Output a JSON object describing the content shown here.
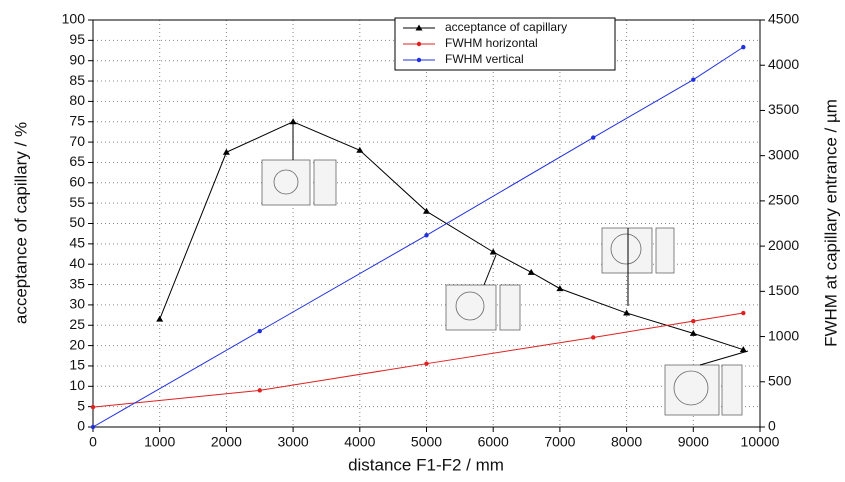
{
  "chart_data": {
    "type": "line",
    "x_label": "distance F1-F2 / mm",
    "y_label": "acceptance of capillary / %",
    "y2_label": "FWHM at capillary entrance / µm",
    "xlim": [
      0,
      10000
    ],
    "xticks": [
      0,
      1000,
      2000,
      3000,
      4000,
      5000,
      6000,
      7000,
      8000,
      9000,
      10000
    ],
    "ylim": [
      0,
      100
    ],
    "yticks": [
      0,
      5,
      10,
      15,
      20,
      25,
      30,
      35,
      40,
      45,
      50,
      55,
      60,
      65,
      70,
      75,
      80,
      85,
      90,
      95,
      100
    ],
    "y2lim": [
      0,
      4500
    ],
    "y2ticks": [
      0,
      500,
      1000,
      1500,
      2000,
      2500,
      3000,
      3500,
      4000,
      4500
    ],
    "grid": true,
    "legend": "top",
    "series": [
      {
        "name": "acceptance of capillary",
        "color": "#000000",
        "marker": "triangle",
        "x": [
          1000,
          2000,
          3000,
          4000,
          5000,
          6000,
          6570,
          7000,
          8000,
          9000,
          9750
        ],
        "values": [
          26.5,
          67.5,
          75,
          68,
          53,
          43,
          38,
          34,
          28,
          23,
          19
        ]
      },
      {
        "name": "FWHM horizontal",
        "color": "#e02020",
        "marker": "circle",
        "axis": "y2",
        "x": [
          0,
          2500,
          5000,
          7500,
          9000,
          9750
        ],
        "values": [
          220,
          405,
          700,
          990,
          1170,
          1260
        ]
      },
      {
        "name": "FWHM vertical",
        "color": "#2030e0",
        "marker": "circle",
        "axis": "y2",
        "x": [
          0,
          2500,
          5000,
          7500,
          9000,
          9750
        ],
        "values": [
          0,
          1060,
          2120,
          3200,
          3840,
          4200
        ]
      }
    ]
  }
}
